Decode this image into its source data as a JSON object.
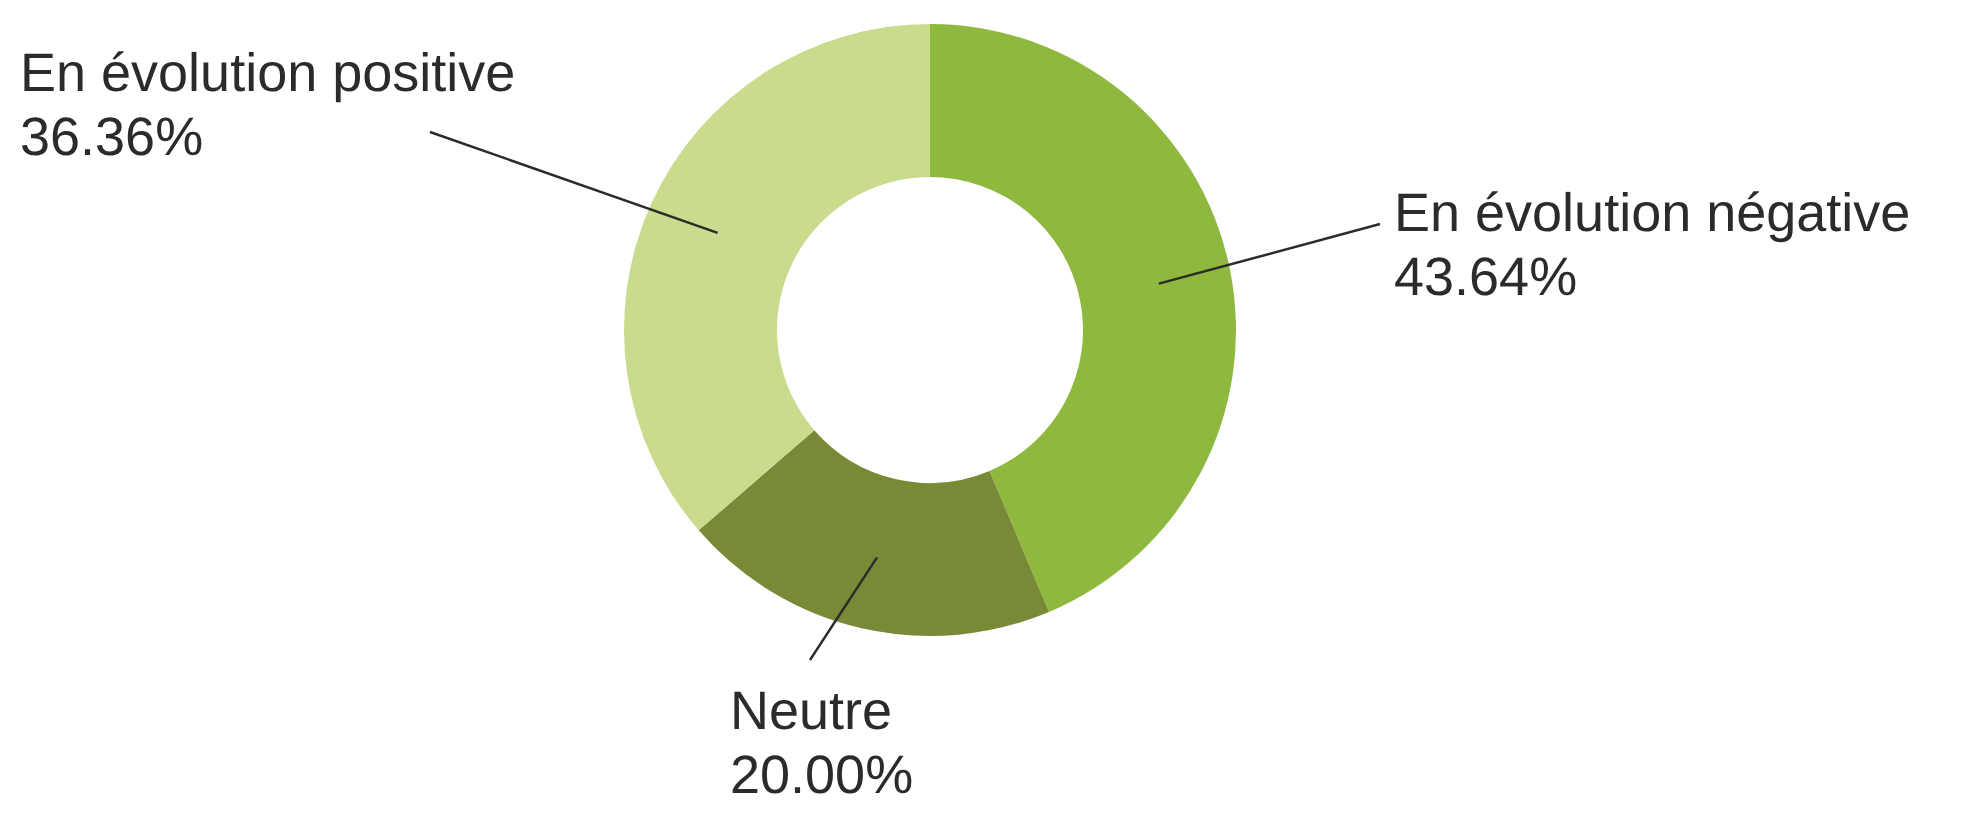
{
  "chart_data": {
    "type": "donut",
    "categories": [
      "En évolution négative",
      "Neutre",
      "En évolution positive"
    ],
    "values": [
      43.64,
      20.0,
      36.36
    ],
    "value_labels": [
      "43.64%",
      "20.00%",
      "36.36%"
    ],
    "colors": [
      "#8fb83e",
      "#788a36",
      "#c9db8c"
    ],
    "legend": false
  }
}
